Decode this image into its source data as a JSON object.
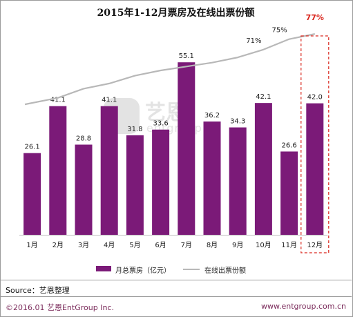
{
  "chart_data": {
    "type": "bar",
    "title": "2015年1-12月票房及在线出票份额",
    "categories": [
      "1月",
      "2月",
      "3月",
      "4月",
      "5月",
      "6月",
      "7月",
      "8月",
      "9月",
      "10月",
      "11月",
      "12月"
    ],
    "series": [
      {
        "name": "月总票房（亿元）",
        "type": "bar",
        "color": "#7b1a78",
        "values": [
          26.1,
          41.1,
          28.8,
          41.1,
          31.8,
          33.6,
          55.1,
          36.2,
          34.3,
          42.1,
          26.6,
          42.0
        ],
        "value_labels": [
          "26.1",
          "41.1",
          "28.8",
          "41.1",
          "31.8",
          "33.6",
          "55.1",
          "36.2",
          "34.3",
          "42.1",
          "26.6",
          "42.0"
        ]
      },
      {
        "name": "在线出票份额",
        "type": "line",
        "color": "#b8b8b8",
        "values": [
          50,
          52.5,
          56,
          58,
          61,
          63,
          64.5,
          66,
          68,
          71,
          75,
          77
        ]
      }
    ],
    "line_annotations": [
      {
        "month_index": 9,
        "label": "71%",
        "color": "#222222"
      },
      {
        "month_index": 10,
        "label": "75%",
        "color": "#222222"
      },
      {
        "month_index": 11,
        "label": "77%",
        "color": "#d9251c"
      }
    ],
    "highlight_month_index": 11,
    "highlight_color": "#d9251c",
    "bar_ylim": [
      0,
      75
    ],
    "line_ylim": [
      0,
      90
    ],
    "grid": false,
    "legend_position": "bottom"
  },
  "source_text": "Source：艺恩整理",
  "copyright_text": "©2016.01 艺恩EntGroup Inc.",
  "website_text": "www.entgroup.com.cn",
  "watermark": {
    "text": "艺恩",
    "subtext": "entgroup"
  }
}
